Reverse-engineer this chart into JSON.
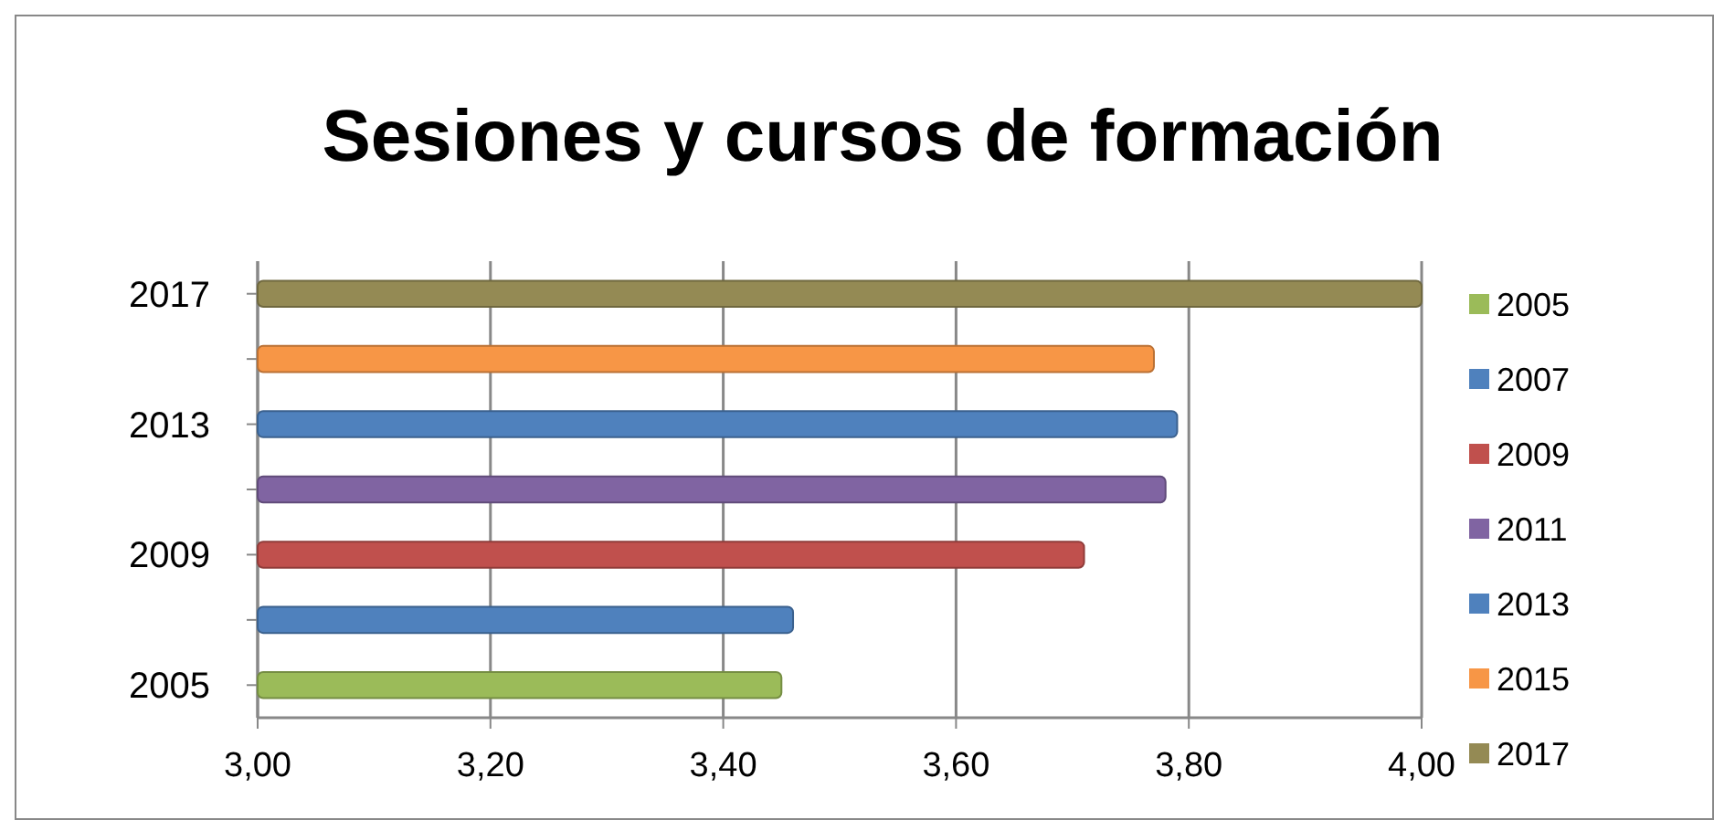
{
  "chart_data": {
    "type": "bar",
    "orientation": "horizontal",
    "title": "Sesiones y cursos de formación",
    "categories": [
      "2017",
      null,
      "2013",
      null,
      "2009",
      null,
      "2005"
    ],
    "series": [
      {
        "name": "2005",
        "color": "#9bbb59",
        "values": [
          null,
          null,
          null,
          null,
          null,
          null,
          3.45
        ]
      },
      {
        "name": "2007",
        "color": "#4f81bd",
        "values": [
          null,
          null,
          null,
          null,
          null,
          3.46,
          null
        ]
      },
      {
        "name": "2009",
        "color": "#c0504d",
        "values": [
          null,
          null,
          null,
          null,
          3.71,
          null,
          null
        ]
      },
      {
        "name": "2011",
        "color": "#8064a2",
        "values": [
          null,
          null,
          null,
          3.78,
          null,
          null,
          null
        ]
      },
      {
        "name": "2013",
        "color": "#4f81bd",
        "values": [
          null,
          null,
          3.79,
          null,
          null,
          null,
          null
        ]
      },
      {
        "name": "2015",
        "color": "#f79646",
        "values": [
          null,
          3.77,
          null,
          null,
          null,
          null,
          null
        ]
      },
      {
        "name": "2017",
        "color": "#948a54",
        "values": [
          4.0,
          null,
          null,
          null,
          null,
          null,
          null
        ]
      }
    ],
    "xlim": [
      3,
      4
    ],
    "xticks": [
      {
        "value": 3,
        "label": "3,00"
      },
      {
        "value": 3.2,
        "label": "3,20"
      },
      {
        "value": 3.4,
        "label": "3,40"
      },
      {
        "value": 3.6,
        "label": "3,60"
      },
      {
        "value": 3.8,
        "label": "3,80"
      },
      {
        "value": 4,
        "label": "4,00"
      }
    ],
    "grid": "x",
    "legend": "right"
  }
}
